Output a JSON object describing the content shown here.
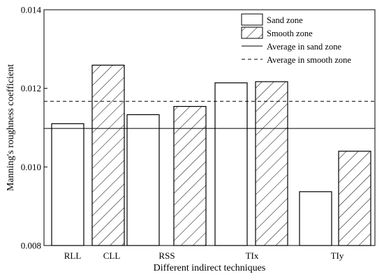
{
  "chart_data": {
    "type": "bar",
    "xlabel": "Different indirect techniques",
    "ylabel": "Manning's roughness coefficient",
    "ylim": [
      0.008,
      0.014
    ],
    "yticks": [
      0.008,
      0.01,
      0.012,
      0.014
    ],
    "ytick_labels": [
      "0.008",
      "0.010",
      "0.012",
      "0.014"
    ],
    "categories": [
      "RLL",
      "CLL",
      "RSS",
      "TIx",
      "TIy"
    ],
    "series": [
      {
        "name": "Sand zone",
        "fill": "none",
        "values": [
          0.0111,
          null,
          0.01133,
          0.01214,
          0.00937
        ]
      },
      {
        "name": "Smooth zone",
        "fill": "hatch",
        "values": [
          null,
          0.01259,
          0.01154,
          0.01217,
          0.0104
        ]
      }
    ],
    "reference_lines": [
      {
        "name": "Average in sand zone",
        "style": "solid",
        "value": 0.01098
      },
      {
        "name": "Average in smooth zone",
        "style": "dashed",
        "value": 0.01167
      }
    ],
    "legend_position": "top-right",
    "grid": false,
    "colors": {
      "bar_stroke": "#000000",
      "bar_fill": "#ffffff",
      "hatch": "#000000"
    }
  }
}
